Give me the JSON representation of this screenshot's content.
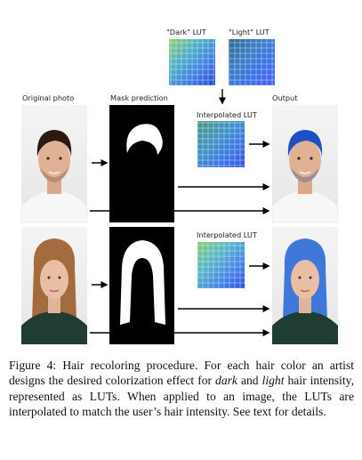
{
  "labels": {
    "dark_lut": "\"Dark\" LUT",
    "light_lut": "\"Light\" LUT",
    "original_photo": "Original photo",
    "mask_prediction": "Mask prediction",
    "output": "Output",
    "interpolated_lut_1": "Interpolated LUT",
    "interpolated_lut_2": "Interpolated LUT"
  },
  "caption": {
    "prefix": "Figure 4:",
    "part1": " Hair recoloring procedure.  For each hair color an artist designs the desired colorization effect for ",
    "dark": "dark",
    "part2": " and ",
    "light": "light",
    "part3": " hair intensity, represented as LUTs.  When applied to an image, the LUTs are interpolated to match the user’s hair intensity. See text for details."
  },
  "colors": {
    "lut_dark_top": "#7fbf6a",
    "lut_dark_bottom": "#2a55e0",
    "lut_light_top": "#2f6b9a",
    "lut_light_bottom": "#3a6cff",
    "hair_dark": "#2b1a12",
    "hair_blue": "#1d4fc6",
    "shirt_white": "#f2f2f2",
    "shirt_dark": "#1f3d33",
    "skin": "#e3b79b"
  }
}
